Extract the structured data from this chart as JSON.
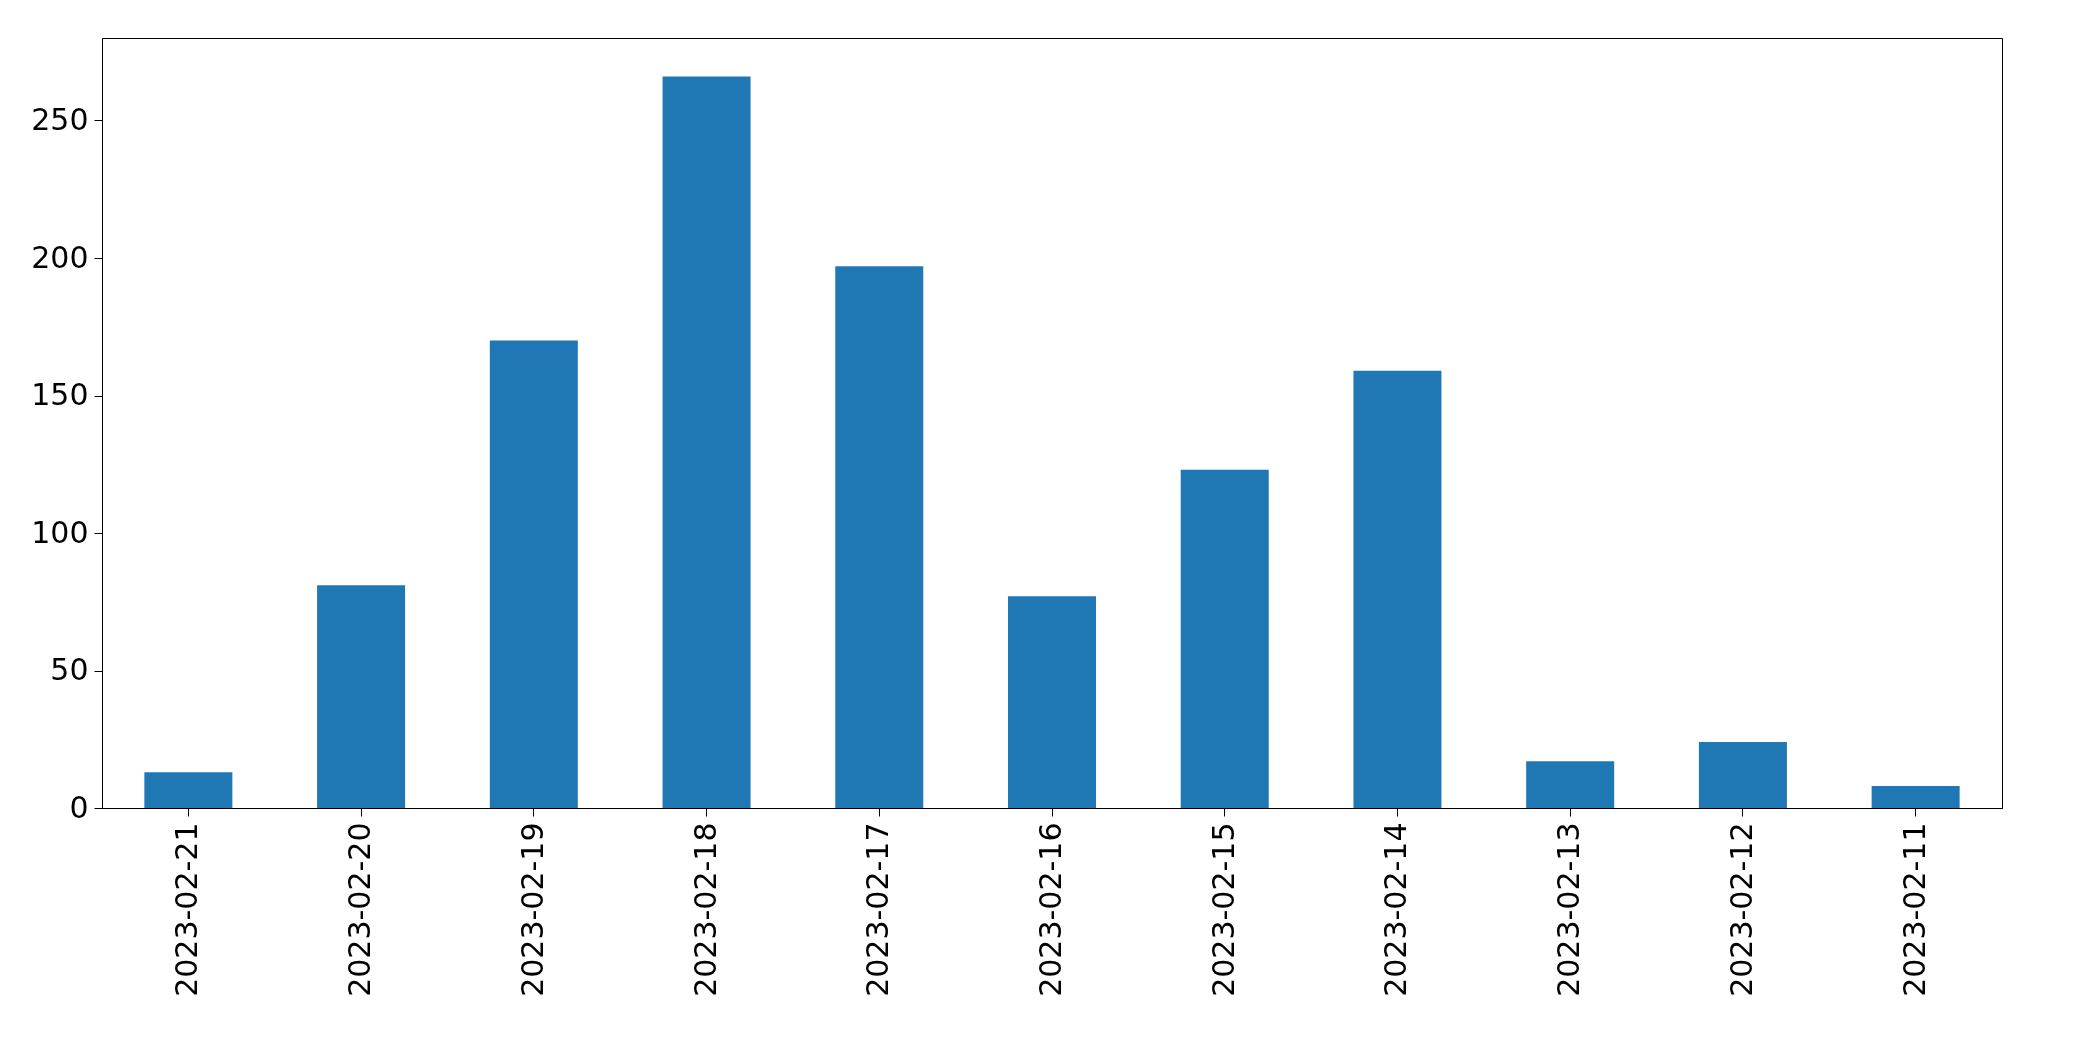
{
  "chart_data": {
    "type": "bar",
    "categories": [
      "2023-02-21",
      "2023-02-20",
      "2023-02-19",
      "2023-02-18",
      "2023-02-17",
      "2023-02-16",
      "2023-02-15",
      "2023-02-14",
      "2023-02-13",
      "2023-02-12",
      "2023-02-11"
    ],
    "values": [
      13,
      81,
      170,
      266,
      197,
      77,
      123,
      159,
      17,
      24,
      8
    ],
    "color": "#1f77b4",
    "ylim": [
      0,
      280
    ],
    "yticks": [
      0,
      50,
      100,
      150,
      200,
      250
    ],
    "grid": false
  }
}
